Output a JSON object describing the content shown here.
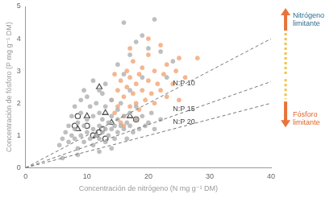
{
  "chart_data": {
    "type": "scatter",
    "x_label": "Concentración de nitrógeno (N mg g⁻¹ DM)",
    "y_label": "Concentración de fósforo (P mg g⁻¹ DM)",
    "xlim": [
      0,
      40
    ],
    "xticks": [
      0,
      10,
      20,
      30,
      40
    ],
    "ylim": [
      0,
      5
    ],
    "yticks": [
      0,
      1,
      2,
      3,
      4,
      5
    ],
    "grid": false,
    "legend": false,
    "annotations": [
      {
        "text": "Nitrógeno limitante",
        "color": "#2e6e8e",
        "direction": "up"
      },
      {
        "text": "Fósforo limitante",
        "color": "#e0662a",
        "direction": "down"
      }
    ],
    "series": [
      {
        "type": "scatter",
        "marker": "circle",
        "color": "#b4b4b4",
        "values": [
          [
            5.5,
            0.7
          ],
          [
            6,
            0.9
          ],
          [
            6.5,
            1.1
          ],
          [
            7,
            0.8
          ],
          [
            7,
            1.3
          ],
          [
            7.5,
            1.0
          ],
          [
            7.5,
            1.6
          ],
          [
            8,
            0.9
          ],
          [
            8,
            1.2
          ],
          [
            8,
            1.9
          ],
          [
            8.5,
            1.4
          ],
          [
            8.5,
            0.6
          ],
          [
            9,
            1.0
          ],
          [
            9,
            1.7
          ],
          [
            9,
            2.1
          ],
          [
            9.5,
            1.3
          ],
          [
            9.5,
            0.8
          ],
          [
            10,
            1.1
          ],
          [
            10,
            1.5
          ],
          [
            10,
            2.2
          ],
          [
            10.5,
            0.9
          ],
          [
            10.5,
            1.9
          ],
          [
            11,
            1.2
          ],
          [
            11,
            1.6
          ],
          [
            11,
            0.7
          ],
          [
            11.5,
            1.0
          ],
          [
            11.5,
            2.0
          ],
          [
            12,
            1.3
          ],
          [
            12,
            0.9
          ],
          [
            12,
            1.7
          ],
          [
            12.5,
            1.1
          ],
          [
            12.5,
            1.5
          ],
          [
            12.5,
            2.3
          ],
          [
            13,
            1.2
          ],
          [
            13,
            0.8
          ],
          [
            13,
            1.9
          ],
          [
            13.5,
            1.4
          ],
          [
            13.5,
            1.0
          ],
          [
            14,
            1.6
          ],
          [
            14,
            1.2
          ],
          [
            14,
            2.1
          ],
          [
            14.5,
            1.3
          ],
          [
            14.5,
            0.9
          ],
          [
            15,
            1.5
          ],
          [
            15,
            1.1
          ],
          [
            15,
            1.8
          ],
          [
            15.5,
            1.3
          ],
          [
            15.5,
            2.0
          ],
          [
            16,
            1.2
          ],
          [
            16,
            1.6
          ],
          [
            16.5,
            1.4
          ],
          [
            16.5,
            0.9
          ],
          [
            17,
            1.3
          ],
          [
            17,
            1.7
          ],
          [
            17.5,
            1.1
          ],
          [
            18,
            1.5
          ],
          [
            18,
            1.9
          ],
          [
            18.5,
            1.2
          ],
          [
            19,
            1.6
          ],
          [
            19.5,
            1.3
          ],
          [
            20,
            1.4
          ],
          [
            20.5,
            1.7
          ],
          [
            21,
            1.2
          ],
          [
            22,
            1.5
          ],
          [
            16,
            4.5
          ],
          [
            18,
            3.9
          ],
          [
            21,
            4.6
          ],
          [
            19,
            4.1
          ],
          [
            20,
            3.7
          ],
          [
            15,
            3.2
          ],
          [
            17,
            3.5
          ],
          [
            22,
            3.6
          ],
          [
            13,
            2.6
          ],
          [
            12,
            2.4
          ],
          [
            11,
            2.7
          ],
          [
            6,
            0.3
          ],
          [
            8.5,
            0.4
          ],
          [
            12,
            0.5
          ],
          [
            14,
            0.6
          ],
          [
            9.5,
            2.4
          ],
          [
            17,
            2.4
          ],
          [
            19,
            2.8
          ],
          [
            16,
            2.9
          ],
          [
            23,
            2.8
          ],
          [
            24,
            3.3
          ]
        ]
      },
      {
        "type": "scatter",
        "marker": "circle",
        "color": "#f4a97c",
        "values": [
          [
            14,
            2.1
          ],
          [
            14.5,
            1.7
          ],
          [
            15,
            2.4
          ],
          [
            15,
            1.9
          ],
          [
            15.5,
            2.7
          ],
          [
            16,
            2.2
          ],
          [
            16,
            1.6
          ],
          [
            16.5,
            3.0
          ],
          [
            16.5,
            2.5
          ],
          [
            17,
            1.9
          ],
          [
            17,
            2.8
          ],
          [
            17.5,
            2.3
          ],
          [
            17.5,
            3.3
          ],
          [
            18,
            2.0
          ],
          [
            18,
            2.6
          ],
          [
            18.5,
            2.9
          ],
          [
            18.5,
            1.8
          ],
          [
            19,
            2.4
          ],
          [
            19,
            3.1
          ],
          [
            19.5,
            2.1
          ],
          [
            20,
            2.7
          ],
          [
            20,
            3.5
          ],
          [
            20.5,
            2.3
          ],
          [
            21,
            3.0
          ],
          [
            21,
            2.0
          ],
          [
            21.5,
            2.6
          ],
          [
            22,
            3.8
          ],
          [
            22,
            2.4
          ],
          [
            22.5,
            2.9
          ],
          [
            23,
            2.2
          ],
          [
            23,
            3.2
          ],
          [
            24,
            2.6
          ],
          [
            24.5,
            3.0
          ],
          [
            25,
            2.1
          ],
          [
            25,
            3.4
          ],
          [
            26,
            2.8
          ],
          [
            28,
            3.4
          ],
          [
            15.5,
            1.4
          ],
          [
            16,
            1.3
          ],
          [
            18,
            1.5
          ],
          [
            14.5,
            2.9
          ],
          [
            20,
            4.0
          ],
          [
            17,
            3.7
          ]
        ]
      },
      {
        "type": "scatter",
        "marker": "open-triangle",
        "color": "#555555",
        "values": [
          [
            8.5,
            1.2
          ],
          [
            10,
            1.6
          ],
          [
            12,
            2.5
          ],
          [
            13,
            1.7
          ],
          [
            14,
            1.4
          ],
          [
            11.5,
            1.0
          ],
          [
            17,
            1.6
          ]
        ]
      },
      {
        "type": "scatter",
        "marker": "open-circle",
        "color": "#555555",
        "values": [
          [
            8.5,
            1.6
          ],
          [
            10,
            1.3
          ],
          [
            11,
            1.0
          ],
          [
            12,
            1.1
          ],
          [
            13,
            0.9
          ],
          [
            12.5,
            1.2
          ],
          [
            18,
            1.5
          ],
          [
            8,
            1.3
          ]
        ]
      },
      {
        "type": "line",
        "name": "N:P 10",
        "line_style": "dashed",
        "color": "#777777",
        "values": [
          [
            0,
            0
          ],
          [
            40,
            4
          ]
        ]
      },
      {
        "type": "line",
        "name": "N:P 15",
        "line_style": "dashed",
        "color": "#777777",
        "values": [
          [
            0,
            0
          ],
          [
            40,
            2.67
          ]
        ]
      },
      {
        "type": "line",
        "name": "N:P 20",
        "line_style": "dashed",
        "color": "#777777",
        "values": [
          [
            0,
            0
          ],
          [
            40,
            2
          ]
        ]
      }
    ]
  }
}
